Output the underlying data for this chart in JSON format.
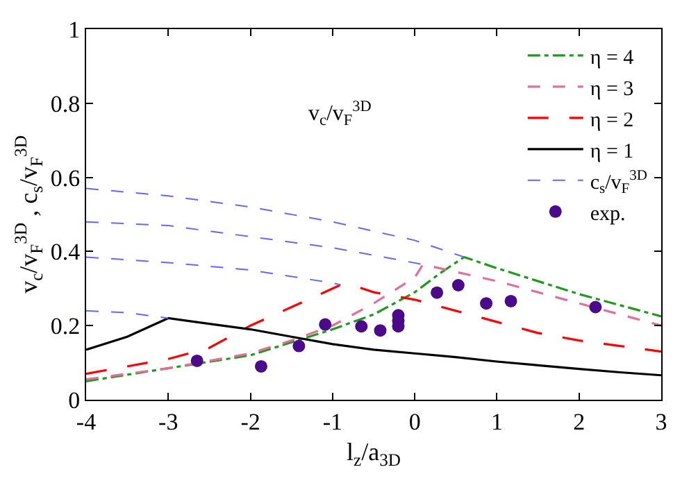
{
  "chart_data": {
    "type": "line",
    "xlabel": "l$_{z}$/a$_{3D}$",
    "ylabel": "v$_{c}$/v$_{F}$$^{3D}$ , c$_{s}$/v$_{F}$$^{3D}$",
    "annotations": [
      "v$_{c}$/v$_{F}$$^{3D}$"
    ],
    "xlim": [
      -4,
      3
    ],
    "xticks": [
      -4,
      -3,
      -2,
      -1,
      0,
      1,
      2,
      3
    ],
    "ylim": [
      0,
      1
    ],
    "yticks": [
      0,
      0.2,
      0.4,
      0.6,
      0.8,
      1
    ],
    "legend": "top right",
    "series": [
      {
        "name": "η = 4",
        "color": "#1f9a1f",
        "line_style": "dashdot",
        "marker": "none",
        "x": [
          -4,
          -3,
          -2,
          -1.5,
          -1,
          -0.5,
          0,
          0.3,
          0.6,
          1,
          1.5,
          2,
          2.5,
          3
        ],
        "values": [
          0.05,
          0.085,
          0.12,
          0.155,
          0.19,
          0.23,
          0.29,
          0.34,
          0.385,
          0.355,
          0.32,
          0.285,
          0.255,
          0.225
        ]
      },
      {
        "name": "η = 3",
        "color": "#e0709a",
        "line_style": "dashed",
        "marker": "none",
        "x": [
          -4,
          -3,
          -2,
          -1.5,
          -1,
          -0.5,
          0,
          0.1,
          0.5,
          1,
          1.5,
          2,
          2.5,
          3
        ],
        "values": [
          0.055,
          0.085,
          0.125,
          0.16,
          0.2,
          0.26,
          0.33,
          0.365,
          0.345,
          0.32,
          0.29,
          0.26,
          0.23,
          0.2
        ]
      },
      {
        "name": "η = 2",
        "color": "#ff0000",
        "line_style": "longdash",
        "marker": "none",
        "x": [
          -4,
          -3,
          -2.5,
          -2,
          -1.5,
          -1,
          -0.9,
          -0.7,
          -0.5,
          0,
          0.5,
          1,
          1.5,
          2,
          2.5,
          3
        ],
        "values": [
          0.07,
          0.11,
          0.14,
          0.2,
          0.25,
          0.3,
          0.31,
          0.305,
          0.29,
          0.27,
          0.24,
          0.21,
          0.18,
          0.16,
          0.145,
          0.13
        ]
      },
      {
        "name": "η = 1",
        "color": "#000000",
        "line_style": "solid",
        "marker": "none",
        "x": [
          -4,
          -3.5,
          -3,
          -2.5,
          -2,
          -1.5,
          -1,
          -0.5,
          0,
          0.5,
          1,
          1.5,
          2,
          2.5,
          3
        ],
        "values": [
          0.135,
          0.17,
          0.22,
          0.205,
          0.19,
          0.17,
          0.15,
          0.135,
          0.125,
          0.115,
          0.103,
          0.093,
          0.083,
          0.074,
          0.066
        ]
      },
      {
        "name": "c$_{s}$/v$_{F}$$^{3D}$",
        "color": "#6666ff",
        "line_style": "dashed",
        "marker": "none",
        "x": [
          -4,
          -3,
          -2,
          -1,
          0,
          0.6
        ],
        "values": [
          0.57,
          0.55,
          0.52,
          0.48,
          0.43,
          0.385
        ]
      },
      {
        "color": "#6666ff",
        "line_style": "dashed",
        "marker": "none",
        "x": [
          -4,
          -3,
          -2,
          -1,
          -0.5,
          0.1
        ],
        "values": [
          0.48,
          0.47,
          0.44,
          0.41,
          0.39,
          0.365
        ]
      },
      {
        "color": "#6666ff",
        "line_style": "dashed",
        "marker": "none",
        "x": [
          -4,
          -3,
          -2,
          -1,
          -0.9
        ],
        "values": [
          0.385,
          0.37,
          0.35,
          0.315,
          0.31
        ]
      },
      {
        "color": "#6666ff",
        "line_style": "dashed",
        "marker": "none",
        "x": [
          -4,
          -3.5,
          -3
        ],
        "values": [
          0.24,
          0.235,
          0.22
        ]
      },
      {
        "name": "exp.",
        "type": "scatter",
        "color": "#4b0a8a",
        "marker": "circle",
        "x": [
          -2.65,
          -1.87,
          -1.41,
          -1.09,
          -0.65,
          -0.42,
          -0.2,
          -0.2,
          -0.2,
          0.27,
          0.53,
          0.87,
          1.17,
          2.2
        ],
        "values": [
          0.105,
          0.09,
          0.145,
          0.203,
          0.198,
          0.187,
          0.228,
          0.213,
          0.198,
          0.289,
          0.309,
          0.26,
          0.266,
          0.25
        ]
      }
    ]
  }
}
